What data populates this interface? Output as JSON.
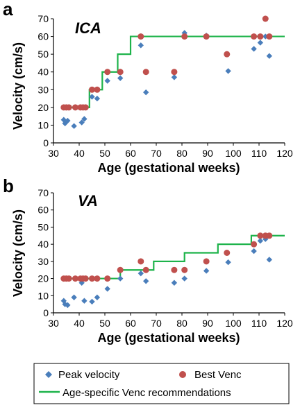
{
  "colors": {
    "peak": "#4a7ebb",
    "venc": "#c0504d",
    "line": "#1db34a",
    "axis": "#000000"
  },
  "legend": {
    "peak_label": "Peak velocity",
    "venc_label": "Best Venc",
    "line_label": "Age-specific Venc recommendations"
  },
  "chart_data": [
    {
      "panel": "a",
      "title": "ICA",
      "type": "scatter",
      "xlabel": "Age (gestational weeks)",
      "ylabel": "Velocity (cm/s)",
      "xlim": [
        30,
        120
      ],
      "ylim": [
        0,
        70
      ],
      "xticks": [
        30,
        40,
        50,
        60,
        70,
        80,
        90,
        100,
        110,
        120
      ],
      "yticks": [
        0,
        10,
        20,
        30,
        40,
        50,
        60,
        70
      ],
      "grid": false,
      "series": [
        {
          "name": "Peak velocity",
          "marker": "diamond",
          "points": [
            [
              34,
              13
            ],
            [
              34.5,
              11
            ],
            [
              35.5,
              12.5
            ],
            [
              38,
              9.5
            ],
            [
              41,
              11.5
            ],
            [
              42,
              13.5
            ],
            [
              45,
              26
            ],
            [
              47,
              25
            ],
            [
              51,
              35
            ],
            [
              56,
              36.5
            ],
            [
              64,
              55
            ],
            [
              66,
              28.5
            ],
            [
              77,
              37
            ],
            [
              81,
              62
            ],
            [
              89.5,
              60.5
            ],
            [
              98,
              40.5
            ],
            [
              108,
              53
            ],
            [
              110.5,
              56.5
            ],
            [
              112.5,
              60
            ],
            [
              114,
              49
            ]
          ]
        },
        {
          "name": "Best Venc",
          "marker": "circle",
          "points": [
            [
              34,
              20
            ],
            [
              35,
              20
            ],
            [
              36,
              20
            ],
            [
              38.5,
              20
            ],
            [
              40.5,
              20
            ],
            [
              41.5,
              20
            ],
            [
              42.5,
              20
            ],
            [
              45,
              30
            ],
            [
              47,
              30
            ],
            [
              51,
              40
            ],
            [
              56,
              40
            ],
            [
              64,
              60
            ],
            [
              66,
              40
            ],
            [
              77,
              40
            ],
            [
              81,
              60
            ],
            [
              89.5,
              60
            ],
            [
              97.5,
              50
            ],
            [
              108,
              60
            ],
            [
              110.5,
              60
            ],
            [
              112.5,
              70
            ],
            [
              114,
              60
            ]
          ]
        },
        {
          "name": "Age-specific Venc recommendations",
          "marker": "step-line",
          "points": [
            [
              33,
              20
            ],
            [
              44,
              20
            ],
            [
              44,
              30
            ],
            [
              49,
              30
            ],
            [
              49,
              40
            ],
            [
              55,
              40
            ],
            [
              55,
              50
            ],
            [
              60,
              50
            ],
            [
              60,
              60
            ],
            [
              120,
              60
            ]
          ]
        }
      ]
    },
    {
      "panel": "b",
      "title": "VA",
      "type": "scatter",
      "xlabel": "Age (gestational weeks)",
      "ylabel": "Velocity (cm/s)",
      "xlim": [
        30,
        120
      ],
      "ylim": [
        0,
        70
      ],
      "xticks": [
        30,
        40,
        50,
        60,
        70,
        80,
        90,
        100,
        110,
        120
      ],
      "yticks": [
        0,
        10,
        20,
        30,
        40,
        50,
        60,
        70
      ],
      "grid": false,
      "series": [
        {
          "name": "Peak velocity",
          "marker": "diamond",
          "points": [
            [
              34,
              7
            ],
            [
              34.5,
              5
            ],
            [
              35.5,
              4.5
            ],
            [
              38,
              9
            ],
            [
              41,
              17.5
            ],
            [
              42,
              7
            ],
            [
              45,
              6.5
            ],
            [
              47,
              9
            ],
            [
              51,
              14
            ],
            [
              56,
              20
            ],
            [
              64,
              23
            ],
            [
              66,
              18.5
            ],
            [
              77,
              17.5
            ],
            [
              81,
              20
            ],
            [
              89.5,
              24.5
            ],
            [
              98,
              29.5
            ],
            [
              108,
              36
            ],
            [
              110.5,
              42
            ],
            [
              112.5,
              43
            ],
            [
              114,
              31
            ]
          ]
        },
        {
          "name": "Best Venc",
          "marker": "circle",
          "points": [
            [
              34,
              20
            ],
            [
              35,
              20
            ],
            [
              36,
              20
            ],
            [
              38.5,
              20
            ],
            [
              40.5,
              20
            ],
            [
              41.5,
              20
            ],
            [
              42.5,
              20
            ],
            [
              45,
              20
            ],
            [
              47,
              20
            ],
            [
              51,
              20
            ],
            [
              56,
              25
            ],
            [
              64,
              30
            ],
            [
              66,
              25
            ],
            [
              77,
              25
            ],
            [
              81,
              25
            ],
            [
              89.5,
              30
            ],
            [
              97.5,
              35
            ],
            [
              108,
              40
            ],
            [
              110.5,
              45
            ],
            [
              112.5,
              45
            ],
            [
              114,
              45
            ]
          ]
        },
        {
          "name": "Age-specific Venc recommendations",
          "marker": "step-line",
          "points": [
            [
              33,
              20
            ],
            [
              56,
              20
            ],
            [
              56,
              25
            ],
            [
              69,
              25
            ],
            [
              69,
              30
            ],
            [
              81,
              30
            ],
            [
              81,
              35
            ],
            [
              94,
              35
            ],
            [
              94,
              40
            ],
            [
              107,
              40
            ],
            [
              107,
              45
            ],
            [
              120,
              45
            ]
          ]
        }
      ]
    }
  ]
}
